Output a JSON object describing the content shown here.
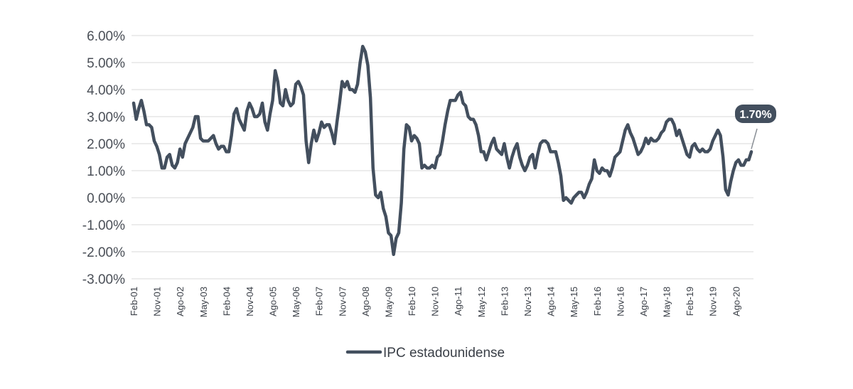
{
  "chart_data": {
    "type": "line",
    "ylim": [
      -3,
      6
    ],
    "yticks": [
      6,
      5,
      4,
      3,
      2,
      1,
      0,
      -1,
      -2,
      -3
    ],
    "ytick_labels": [
      "6.00%",
      "5.00%",
      "4.00%",
      "3.00%",
      "2.00%",
      "1.00%",
      "0.00%",
      "-1.00%",
      "-2.00%",
      "-3.00%"
    ],
    "xtick_labels": [
      "Feb-01",
      "Nov-01",
      "Ago-02",
      "May-03",
      "Feb-04",
      "Nov-04",
      "Ago-05",
      "May-06",
      "Feb-07",
      "Nov-07",
      "Ago-08",
      "May-09",
      "Feb-10",
      "Nov-10",
      "Ago-11",
      "May-12",
      "Feb-13",
      "Nov-13",
      "Ago-14",
      "May-15",
      "Feb-16",
      "Nov-16",
      "Ago-17",
      "May-18",
      "Feb-19",
      "Nov-19",
      "Ago-20"
    ],
    "grid": true,
    "legend_position": "bottom",
    "series": [
      {
        "name": "IPC estadounidense",
        "color": "#434f5e",
        "start": "Feb-01",
        "frequency": "monthly",
        "values": [
          3.5,
          2.9,
          3.3,
          3.6,
          3.2,
          2.7,
          2.7,
          2.6,
          2.1,
          1.9,
          1.6,
          1.1,
          1.1,
          1.5,
          1.6,
          1.2,
          1.1,
          1.3,
          1.8,
          1.5,
          2.0,
          2.2,
          2.4,
          2.6,
          3.0,
          3.0,
          2.2,
          2.1,
          2.1,
          2.1,
          2.2,
          2.3,
          2.0,
          1.8,
          1.9,
          1.9,
          1.7,
          1.7,
          2.3,
          3.1,
          3.3,
          2.9,
          2.7,
          2.5,
          3.2,
          3.5,
          3.3,
          3.0,
          3.0,
          3.1,
          3.5,
          2.8,
          2.5,
          3.1,
          3.6,
          4.7,
          4.3,
          3.5,
          3.4,
          4.0,
          3.6,
          3.4,
          3.5,
          4.2,
          4.3,
          4.1,
          3.8,
          2.1,
          1.3,
          2.0,
          2.5,
          2.1,
          2.4,
          2.8,
          2.6,
          2.7,
          2.7,
          2.4,
          2.0,
          2.8,
          3.5,
          4.3,
          4.1,
          4.3,
          4.0,
          4.0,
          3.9,
          4.2,
          5.0,
          5.6,
          5.4,
          4.9,
          3.7,
          1.1,
          0.1,
          0.0,
          0.2,
          -0.4,
          -0.7,
          -1.3,
          -1.4,
          -2.1,
          -1.5,
          -1.3,
          -0.2,
          1.8,
          2.7,
          2.6,
          2.1,
          2.3,
          2.2,
          2.0,
          1.1,
          1.2,
          1.1,
          1.1,
          1.2,
          1.1,
          1.5,
          1.6,
          2.1,
          2.7,
          3.2,
          3.6,
          3.6,
          3.6,
          3.8,
          3.9,
          3.5,
          3.4,
          3.0,
          2.9,
          2.9,
          2.7,
          2.3,
          1.7,
          1.7,
          1.4,
          1.7,
          2.0,
          2.2,
          1.8,
          1.7,
          1.6,
          2.0,
          1.5,
          1.1,
          1.5,
          1.8,
          2.0,
          1.5,
          1.2,
          1.0,
          1.2,
          1.5,
          1.6,
          1.1,
          1.6,
          2.0,
          2.1,
          2.1,
          2.0,
          1.7,
          1.7,
          1.7,
          1.3,
          0.8,
          -0.1,
          0.0,
          -0.1,
          -0.2,
          0.0,
          0.1,
          0.2,
          0.2,
          0.0,
          0.2,
          0.5,
          0.7,
          1.4,
          1.0,
          0.9,
          1.1,
          1.0,
          1.0,
          0.8,
          1.1,
          1.5,
          1.6,
          1.7,
          2.1,
          2.5,
          2.7,
          2.4,
          2.2,
          1.9,
          1.6,
          1.7,
          1.9,
          2.2,
          2.0,
          2.2,
          2.1,
          2.1,
          2.2,
          2.4,
          2.5,
          2.8,
          2.9,
          2.9,
          2.7,
          2.3,
          2.5,
          2.2,
          1.9,
          1.6,
          1.5,
          1.9,
          2.0,
          1.8,
          1.7,
          1.8,
          1.7,
          1.7,
          1.8,
          2.1,
          2.3,
          2.5,
          2.3,
          1.5,
          0.3,
          0.1,
          0.6,
          1.0,
          1.3,
          1.4,
          1.2,
          1.2,
          1.4,
          1.4,
          1.7
        ]
      }
    ],
    "annotation": {
      "text": "1.70%"
    },
    "legend": {
      "label": "IPC estadounidense"
    }
  }
}
